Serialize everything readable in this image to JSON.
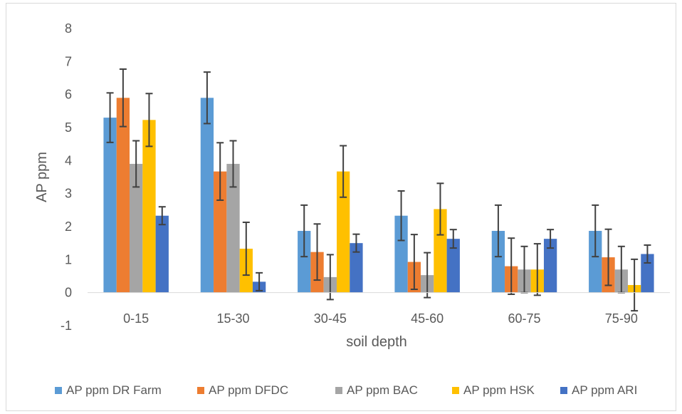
{
  "chart_data": {
    "type": "bar",
    "title": "",
    "xlabel": "soil depth",
    "ylabel": "AP  ppm",
    "ylim": [
      -1,
      8
    ],
    "yticks": [
      -1,
      0,
      1,
      2,
      3,
      4,
      5,
      6,
      7,
      8
    ],
    "grid": false,
    "legend_position": "bottom",
    "categories": [
      "0-15",
      "15-30",
      "30-45",
      "45-60",
      "60-75",
      "75-90"
    ],
    "series": [
      {
        "name": "AP ppm DR Farm",
        "color": "#5b9bd5",
        "values": [
          5.3,
          5.9,
          1.87,
          2.33,
          1.87,
          1.87
        ],
        "error": [
          0.75,
          0.78,
          0.78,
          0.75,
          0.78,
          0.78
        ]
      },
      {
        "name": "AP ppm DFDC",
        "color": "#ed7d31",
        "values": [
          5.9,
          3.67,
          1.23,
          0.93,
          0.8,
          1.07
        ],
        "error": [
          0.87,
          0.87,
          0.85,
          0.83,
          0.85,
          0.85
        ]
      },
      {
        "name": "AP ppm BAC",
        "color": "#a5a5a5",
        "values": [
          3.9,
          3.9,
          0.47,
          0.53,
          0.7,
          0.7
        ],
        "error": [
          0.7,
          0.7,
          0.68,
          0.68,
          0.7,
          0.7
        ]
      },
      {
        "name": "AP ppm HSK",
        "color": "#ffc000",
        "values": [
          5.23,
          1.33,
          3.67,
          2.53,
          0.7,
          0.23
        ],
        "error": [
          0.8,
          0.8,
          0.78,
          0.78,
          0.78,
          0.78
        ]
      },
      {
        "name": "AP ppm ARI",
        "color": "#4472c4",
        "values": [
          2.33,
          0.33,
          1.5,
          1.63,
          1.63,
          1.17
        ],
        "error": [
          0.27,
          0.27,
          0.27,
          0.28,
          0.28,
          0.27
        ]
      }
    ]
  }
}
